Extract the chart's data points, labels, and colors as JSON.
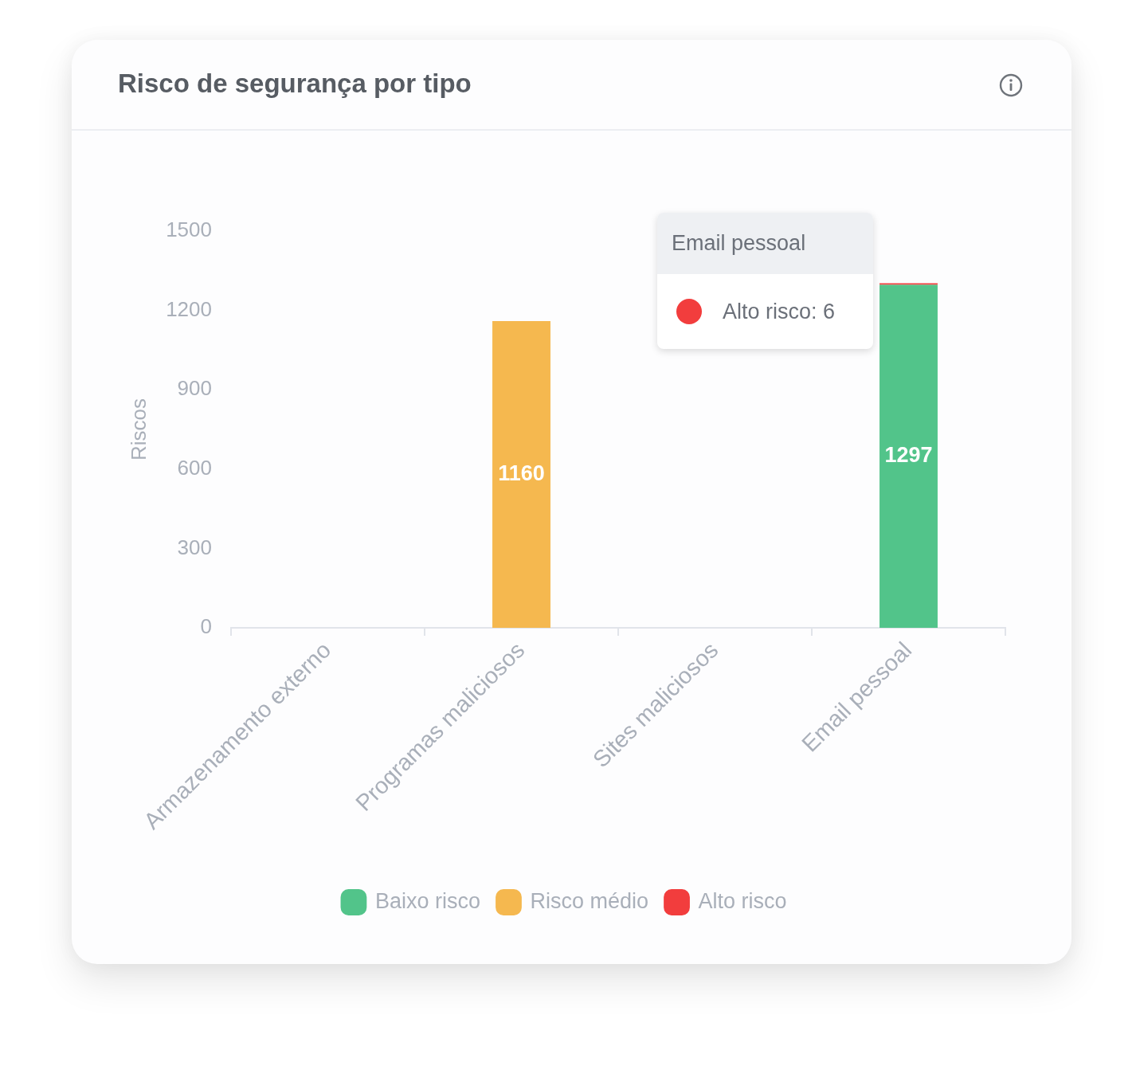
{
  "chart_data": {
    "type": "bar",
    "title": "Risco de segurança por tipo",
    "ylabel": "Riscos",
    "categories": [
      "Armazenamento externo",
      "Programas maliciosos",
      "Sites maliciosos",
      "Email pessoal"
    ],
    "stacked": true,
    "series": [
      {
        "name": "Baixo risco",
        "color": "#52c48a",
        "values": [
          0,
          0,
          0,
          1297
        ],
        "value_labels": [
          null,
          null,
          null,
          "1297"
        ]
      },
      {
        "name": "Risco médio",
        "color": "#f5b84f",
        "values": [
          0,
          1160,
          0,
          0
        ],
        "value_labels": [
          null,
          "1160",
          null,
          null
        ]
      },
      {
        "name": "Alto risco",
        "color": "#f23d3d",
        "values": [
          0,
          0,
          0,
          6
        ]
      }
    ],
    "ylim": [
      0,
      1500
    ],
    "yticks": [
      0,
      300,
      600,
      900,
      1200,
      1500
    ],
    "legend": "bottom",
    "annotations": [
      {
        "text": "Email pessoal",
        "x": "Email pessoal",
        "y": 1303
      },
      {
        "text": "Alto risco: 6",
        "x": "Email pessoal",
        "y": 1303
      }
    ]
  }
}
